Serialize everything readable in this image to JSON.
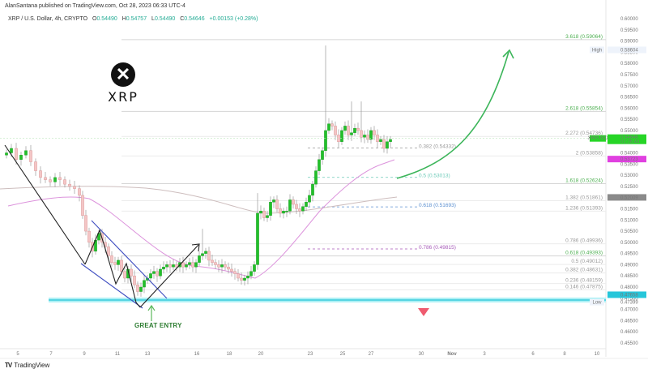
{
  "header": {
    "published": "AlanSantana published on TradingView.com, Oct 28, 2023 06:33 UTC-4",
    "symbol": "XRP / U.S. Dollar, 4h, CRYPTO",
    "open_label": "O",
    "open": "0.54490",
    "high_label": "H",
    "high": "0.54757",
    "low_label": "L",
    "low": "0.54490",
    "close_label": "C",
    "close": "0.54646",
    "change": "+0.00153 (+0.28%)"
  },
  "logo": {
    "symbol": "✕",
    "text": "XRP"
  },
  "annotations": {
    "great_entry": "GREAT ENTRY"
  },
  "footer": {
    "brand_icon": "TV",
    "brand": "TradingView"
  },
  "colors": {
    "up": "#22c02a",
    "down": "#f4c6c6",
    "ma_short": "#d88fd8",
    "ma_long": "#c8b8b8",
    "support": "#4dd9e6",
    "arrow": "#3cb55a",
    "fib_green": "#4caf50",
    "fib_blue": "#5a8fd0",
    "fib_purple": "#a65ab8",
    "fib_gray": "#999999",
    "price_tag": "#26d526",
    "ma_tag": "#e040e0"
  },
  "chart_data": {
    "type": "candlestick",
    "title": "XRP / U.S. Dollar, 4h, CRYPTO",
    "xlabel": "",
    "ylabel": "Price (USD)",
    "ylim": [
      0.455,
      0.6
    ],
    "x_ticks": [
      "5",
      "7",
      "9",
      "11",
      "13",
      "16",
      "18",
      "20",
      "23",
      "25",
      "27",
      "30",
      "Nov",
      "3",
      "6",
      "8",
      "10"
    ],
    "y_ticks": [
      "0.60000",
      "0.59500",
      "0.59000",
      "0.58500",
      "0.58000",
      "0.57500",
      "0.57000",
      "0.56500",
      "0.56000",
      "0.55500",
      "0.55000",
      "0.54500",
      "0.54000",
      "0.53500",
      "0.53000",
      "0.52500",
      "0.52000",
      "0.51500",
      "0.51000",
      "0.50500",
      "0.50000",
      "0.49500",
      "0.49000",
      "0.48500",
      "0.48000",
      "0.47500",
      "0.47000",
      "0.46500",
      "0.46000",
      "0.45500"
    ],
    "price_labels": {
      "high": {
        "label": "High",
        "value": "0.58604"
      },
      "low": {
        "label": "Low",
        "value": "0.47399"
      },
      "last": {
        "label": "XRPUSD",
        "value": "0.54646",
        "countdown": "01:26:44"
      },
      "ma_short": "0.53723",
      "ma_long": "0.52009",
      "support": "0.47658"
    },
    "fib_extension_right": [
      {
        "level": "3.618",
        "price": "0.59064",
        "color": "green"
      },
      {
        "level": "2.618",
        "price": "0.55854",
        "color": "green"
      },
      {
        "level": "2.272",
        "price": "0.54736",
        "color": "gray"
      },
      {
        "level": "2",
        "price": "0.53858",
        "color": "gray"
      },
      {
        "level": "1.618",
        "price": "0.52624",
        "color": "green"
      },
      {
        "level": "1.382",
        "price": "0.51861",
        "color": "gray"
      },
      {
        "level": "1.236",
        "price": "0.51393",
        "color": "gray"
      },
      {
        "level": "0.786",
        "price": "0.49936",
        "color": "gray"
      },
      {
        "level": "0.618",
        "price": "0.49393",
        "color": "green"
      },
      {
        "level": "0.5",
        "price": "0.49012",
        "color": "gray"
      },
      {
        "level": "0.382",
        "price": "0.48631",
        "color": "gray"
      },
      {
        "level": "0.236",
        "price": "0.48159",
        "color": "gray"
      },
      {
        "level": "0.146",
        "price": "0.47875",
        "color": "gray"
      }
    ],
    "fib_retracement_mid": [
      {
        "level": "0.382",
        "price": "0.54332",
        "color": "gray"
      },
      {
        "level": "0.5",
        "price": "0.53013",
        "color": "teal"
      },
      {
        "level": "0.618",
        "price": "0.51693",
        "color": "blue"
      },
      {
        "level": "0.786",
        "price": "0.49815",
        "color": "purple"
      }
    ],
    "series": [
      {
        "name": "XRPUSD 4h close (approx)",
        "x": [
          "5",
          "7",
          "9",
          "11",
          "13",
          "16",
          "18",
          "20",
          "23",
          "25",
          "27"
        ],
        "values": [
          0.537,
          0.527,
          0.505,
          0.486,
          0.481,
          0.488,
          0.484,
          0.513,
          0.532,
          0.554,
          0.546
        ]
      },
      {
        "name": "MA short (pink)",
        "x": [
          "5",
          "9",
          "13",
          "16",
          "20",
          "23",
          "25",
          "27"
        ],
        "values": [
          0.522,
          0.522,
          0.494,
          0.49,
          0.494,
          0.513,
          0.527,
          0.537
        ]
      },
      {
        "name": "MA long (gray)",
        "x": [
          "5",
          "9",
          "13",
          "16",
          "20",
          "23",
          "27"
        ],
        "values": [
          0.527,
          0.526,
          0.525,
          0.523,
          0.517,
          0.517,
          0.52
        ]
      }
    ],
    "legend_position": "none",
    "grid": false
  }
}
